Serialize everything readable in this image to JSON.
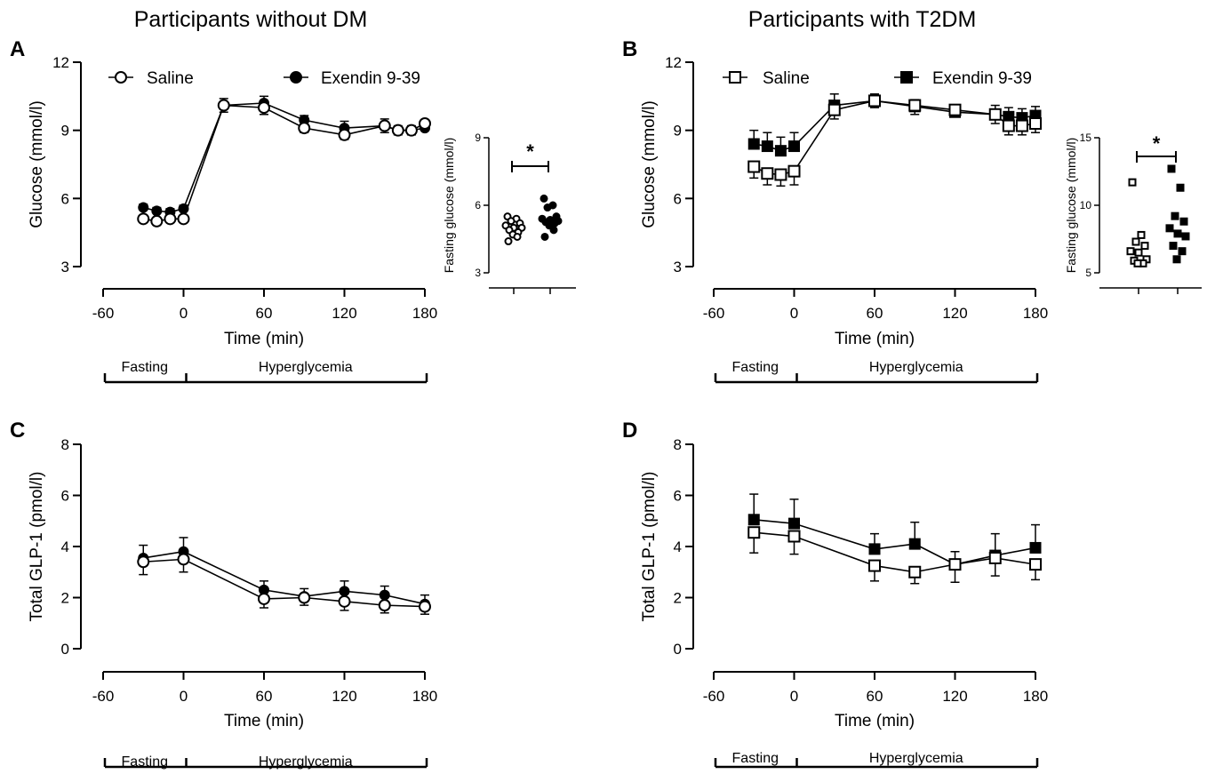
{
  "column_titles": [
    "Participants without DM",
    "Participants with T2DM"
  ],
  "legend": {
    "A": [
      "Saline",
      "Exendin 9-39"
    ],
    "B": [
      "Saline",
      "Exendin 9-39"
    ]
  },
  "phases": [
    "Fasting",
    "Hyperglycemia"
  ],
  "chart_data": [
    {
      "panel": "A",
      "type": "line",
      "xlabel": "Time (min)",
      "ylabel": "Glucose (mmol/l)",
      "xlim": [
        -60,
        180
      ],
      "ylim": [
        3,
        12
      ],
      "xticks": [
        -60,
        0,
        60,
        120,
        180
      ],
      "yticks": [
        3,
        6,
        9,
        12
      ],
      "marker": "circle",
      "series": [
        {
          "name": "Saline",
          "filled": false,
          "x": [
            -30,
            -20,
            -10,
            0,
            30,
            60,
            90,
            120,
            150,
            160,
            170,
            180
          ],
          "y": [
            5.1,
            5.0,
            5.1,
            5.1,
            10.1,
            10.0,
            9.1,
            8.8,
            9.2,
            9.0,
            9.0,
            9.3
          ],
          "err": [
            0.15,
            0.15,
            0.15,
            0.15,
            0.3,
            0.3,
            0.2,
            0.2,
            0.3,
            0.2,
            0.2,
            0.2
          ]
        },
        {
          "name": "Exendin 9-39",
          "filled": true,
          "x": [
            -30,
            -20,
            -10,
            0,
            30,
            60,
            90,
            120,
            150,
            160,
            170,
            180
          ],
          "y": [
            5.6,
            5.45,
            5.4,
            5.55,
            10.1,
            10.2,
            9.45,
            9.1,
            9.2,
            9.0,
            9.0,
            9.1
          ],
          "err": [
            0.15,
            0.15,
            0.15,
            0.15,
            0.3,
            0.3,
            0.2,
            0.3,
            0.3,
            0.2,
            0.2,
            0.2
          ]
        }
      ],
      "inset": {
        "type": "scatter",
        "ylabel": "Fasting glucose (mmol/l)",
        "ylim": [
          3,
          9
        ],
        "yticks": [
          3,
          6,
          9
        ],
        "significance": "*",
        "groups": [
          {
            "name": "Saline",
            "filled": false,
            "values": [
              5.5,
              5.4,
              5.3,
              5.2,
              5.1,
              5.0,
              5.0,
              4.9,
              4.8,
              4.7,
              4.6,
              4.4
            ]
          },
          {
            "name": "Exendin 9-39",
            "filled": true,
            "values": [
              6.3,
              6.0,
              5.9,
              5.5,
              5.4,
              5.35,
              5.3,
              5.25,
              5.2,
              5.1,
              4.9,
              4.6
            ]
          }
        ]
      }
    },
    {
      "panel": "B",
      "type": "line",
      "xlabel": "Time (min)",
      "ylabel": "Glucose (mmol/l)",
      "xlim": [
        -60,
        180
      ],
      "ylim": [
        3,
        12
      ],
      "xticks": [
        -60,
        0,
        60,
        120,
        180
      ],
      "yticks": [
        3,
        6,
        9,
        12
      ],
      "marker": "square",
      "series": [
        {
          "name": "Saline",
          "filled": false,
          "x": [
            -30,
            -20,
            -10,
            0,
            30,
            60,
            90,
            120,
            150,
            160,
            170,
            180
          ],
          "y": [
            7.4,
            7.1,
            7.05,
            7.2,
            9.9,
            10.3,
            10.1,
            9.9,
            9.7,
            9.2,
            9.2,
            9.3
          ],
          "err": [
            0.5,
            0.5,
            0.5,
            0.6,
            0.4,
            0.3,
            0.4,
            0.3,
            0.4,
            0.4,
            0.4,
            0.4
          ]
        },
        {
          "name": "Exendin 9-39",
          "filled": true,
          "x": [
            -30,
            -20,
            -10,
            0,
            30,
            60,
            90,
            120,
            150,
            160,
            170,
            180
          ],
          "y": [
            8.4,
            8.3,
            8.1,
            8.3,
            10.1,
            10.3,
            10.05,
            9.8,
            9.7,
            9.6,
            9.55,
            9.65
          ],
          "err": [
            0.6,
            0.6,
            0.6,
            0.6,
            0.5,
            0.3,
            0.3,
            0.3,
            0.4,
            0.4,
            0.4,
            0.4
          ]
        }
      ],
      "inset": {
        "type": "scatter",
        "ylabel": "Fasting glucose (mmol/l)",
        "ylim": [
          5,
          15
        ],
        "yticks": [
          5,
          10,
          15
        ],
        "significance": "*",
        "groups": [
          {
            "name": "Saline",
            "filled": false,
            "values": [
              11.7,
              7.8,
              7.3,
              7.0,
              6.6,
              6.5,
              6.0,
              5.9,
              5.7,
              5.7
            ]
          },
          {
            "name": "Exendin 9-39",
            "filled": true,
            "values": [
              12.7,
              11.3,
              9.2,
              8.8,
              8.3,
              7.9,
              7.7,
              7.0,
              6.6,
              6.0
            ]
          }
        ]
      }
    },
    {
      "panel": "C",
      "type": "line",
      "xlabel": "Time (min)",
      "ylabel": "Total GLP-1 (pmol/l)",
      "xlim": [
        -60,
        180
      ],
      "ylim": [
        0,
        8
      ],
      "xticks": [
        -60,
        0,
        60,
        120,
        180
      ],
      "yticks": [
        0,
        2,
        4,
        6,
        8
      ],
      "marker": "circle",
      "series": [
        {
          "name": "Saline",
          "filled": false,
          "x": [
            -30,
            0,
            60,
            90,
            120,
            150,
            180
          ],
          "y": [
            3.4,
            3.5,
            1.95,
            2.0,
            1.85,
            1.7,
            1.65
          ],
          "err": [
            0.5,
            0.5,
            0.35,
            0.3,
            0.35,
            0.3,
            0.3
          ]
        },
        {
          "name": "Exendin 9-39",
          "filled": true,
          "x": [
            -30,
            0,
            60,
            90,
            120,
            150,
            180
          ],
          "y": [
            3.55,
            3.8,
            2.3,
            2.05,
            2.25,
            2.1,
            1.75
          ],
          "err": [
            0.5,
            0.55,
            0.35,
            0.3,
            0.4,
            0.35,
            0.35
          ]
        }
      ]
    },
    {
      "panel": "D",
      "type": "line",
      "xlabel": "Time (min)",
      "ylabel": "Total GLP-1 (pmol/l)",
      "xlim": [
        -60,
        180
      ],
      "ylim": [
        0,
        8
      ],
      "xticks": [
        -60,
        0,
        60,
        120,
        180
      ],
      "yticks": [
        0,
        2,
        4,
        6,
        8
      ],
      "marker": "square",
      "series": [
        {
          "name": "Saline",
          "filled": false,
          "x": [
            -30,
            0,
            60,
            90,
            120,
            150,
            180
          ],
          "y": [
            4.55,
            4.4,
            3.25,
            3.0,
            3.3,
            3.55,
            3.3
          ],
          "err": [
            0.8,
            0.7,
            0.6,
            0.45,
            0.7,
            0.7,
            0.6
          ]
        },
        {
          "name": "Exendin 9-39",
          "filled": true,
          "x": [
            -30,
            0,
            60,
            90,
            120,
            150,
            180
          ],
          "y": [
            5.05,
            4.9,
            3.9,
            4.1,
            3.3,
            3.65,
            3.95
          ],
          "err": [
            1.0,
            0.95,
            0.6,
            0.85,
            0.5,
            0.85,
            0.9
          ]
        }
      ]
    }
  ]
}
